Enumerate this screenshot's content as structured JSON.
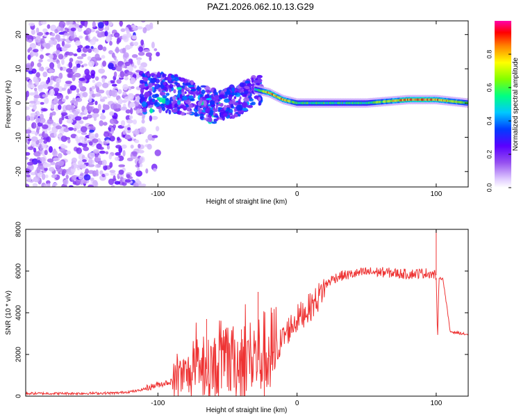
{
  "title": "PAZ1.2026.062.10.13.G29",
  "chart_data": [
    {
      "type": "heatmap",
      "xlabel": "Height of straight line (km)",
      "ylabel": "Frequency (Hz)",
      "xlim": [
        -195,
        123
      ],
      "ylim": [
        -24.5,
        24
      ],
      "xticks": [
        -100,
        0,
        100
      ],
      "yticks": [
        -20,
        -10,
        0,
        10,
        20
      ],
      "colorbar": {
        "label": "Normalized spectral amplitude",
        "range": [
          0,
          1
        ],
        "ticks": [
          "0.0",
          "0.2",
          "0.4",
          "0.6",
          "0.8"
        ],
        "colors": [
          "#ffffff",
          "#e0c8ff",
          "#8a2be2",
          "#5000ff",
          "#0000ff",
          "#00c8ff",
          "#00ff80",
          "#80ff00",
          "#ffff00",
          "#ff8000",
          "#ff0000",
          "#ff00a0"
        ]
      },
      "ridge": {
        "x": [
          -95,
          -80,
          -60,
          -40,
          -30,
          -20,
          -10,
          0,
          20,
          50,
          80,
          100,
          123
        ],
        "frequency": [
          3,
          2,
          -1,
          1,
          4,
          3,
          1,
          0,
          0,
          0,
          1,
          1,
          0
        ],
        "amplitude": [
          0.35,
          0.25,
          0.3,
          0.35,
          0.5,
          0.8,
          0.8,
          0.55,
          0.55,
          0.55,
          0.85,
          0.85,
          0.6
        ]
      }
    },
    {
      "type": "line",
      "xlabel": "Height of straight line (km)",
      "ylabel": "SNR (10 * v/v)",
      "xlim": [
        -195,
        123
      ],
      "ylim": [
        0,
        8000
      ],
      "xticks": [
        -100,
        0,
        100
      ],
      "yticks": [
        0,
        2000,
        4000,
        6000,
        8000
      ],
      "color": "#ee3333",
      "series": [
        {
          "name": "SNR",
          "x": [
            -195,
            -160,
            -130,
            -115,
            -105,
            -100,
            -90,
            -80,
            -70,
            -60,
            -50,
            -40,
            -30,
            -20,
            -15,
            -10,
            -5,
            0,
            5,
            10,
            15,
            20,
            25,
            30,
            40,
            50,
            60,
            70,
            80,
            90,
            95,
            100,
            101,
            102,
            105,
            110,
            123
          ],
          "y": [
            130,
            130,
            150,
            250,
            450,
            550,
            700,
            1000,
            1200,
            1400,
            1600,
            1700,
            1900,
            2000,
            2200,
            2800,
            3300,
            3700,
            4000,
            4300,
            4700,
            5300,
            5600,
            5750,
            5850,
            5950,
            5950,
            5900,
            5850,
            5900,
            5900,
            5800,
            2600,
            5700,
            5600,
            3100,
            2950
          ]
        }
      ],
      "spikes": [
        {
          "x": -65,
          "y": 3700
        },
        {
          "x": -40,
          "y": 3200
        },
        {
          "x": -28,
          "y": 5000
        },
        {
          "x": 100,
          "y": 8000
        }
      ]
    }
  ]
}
